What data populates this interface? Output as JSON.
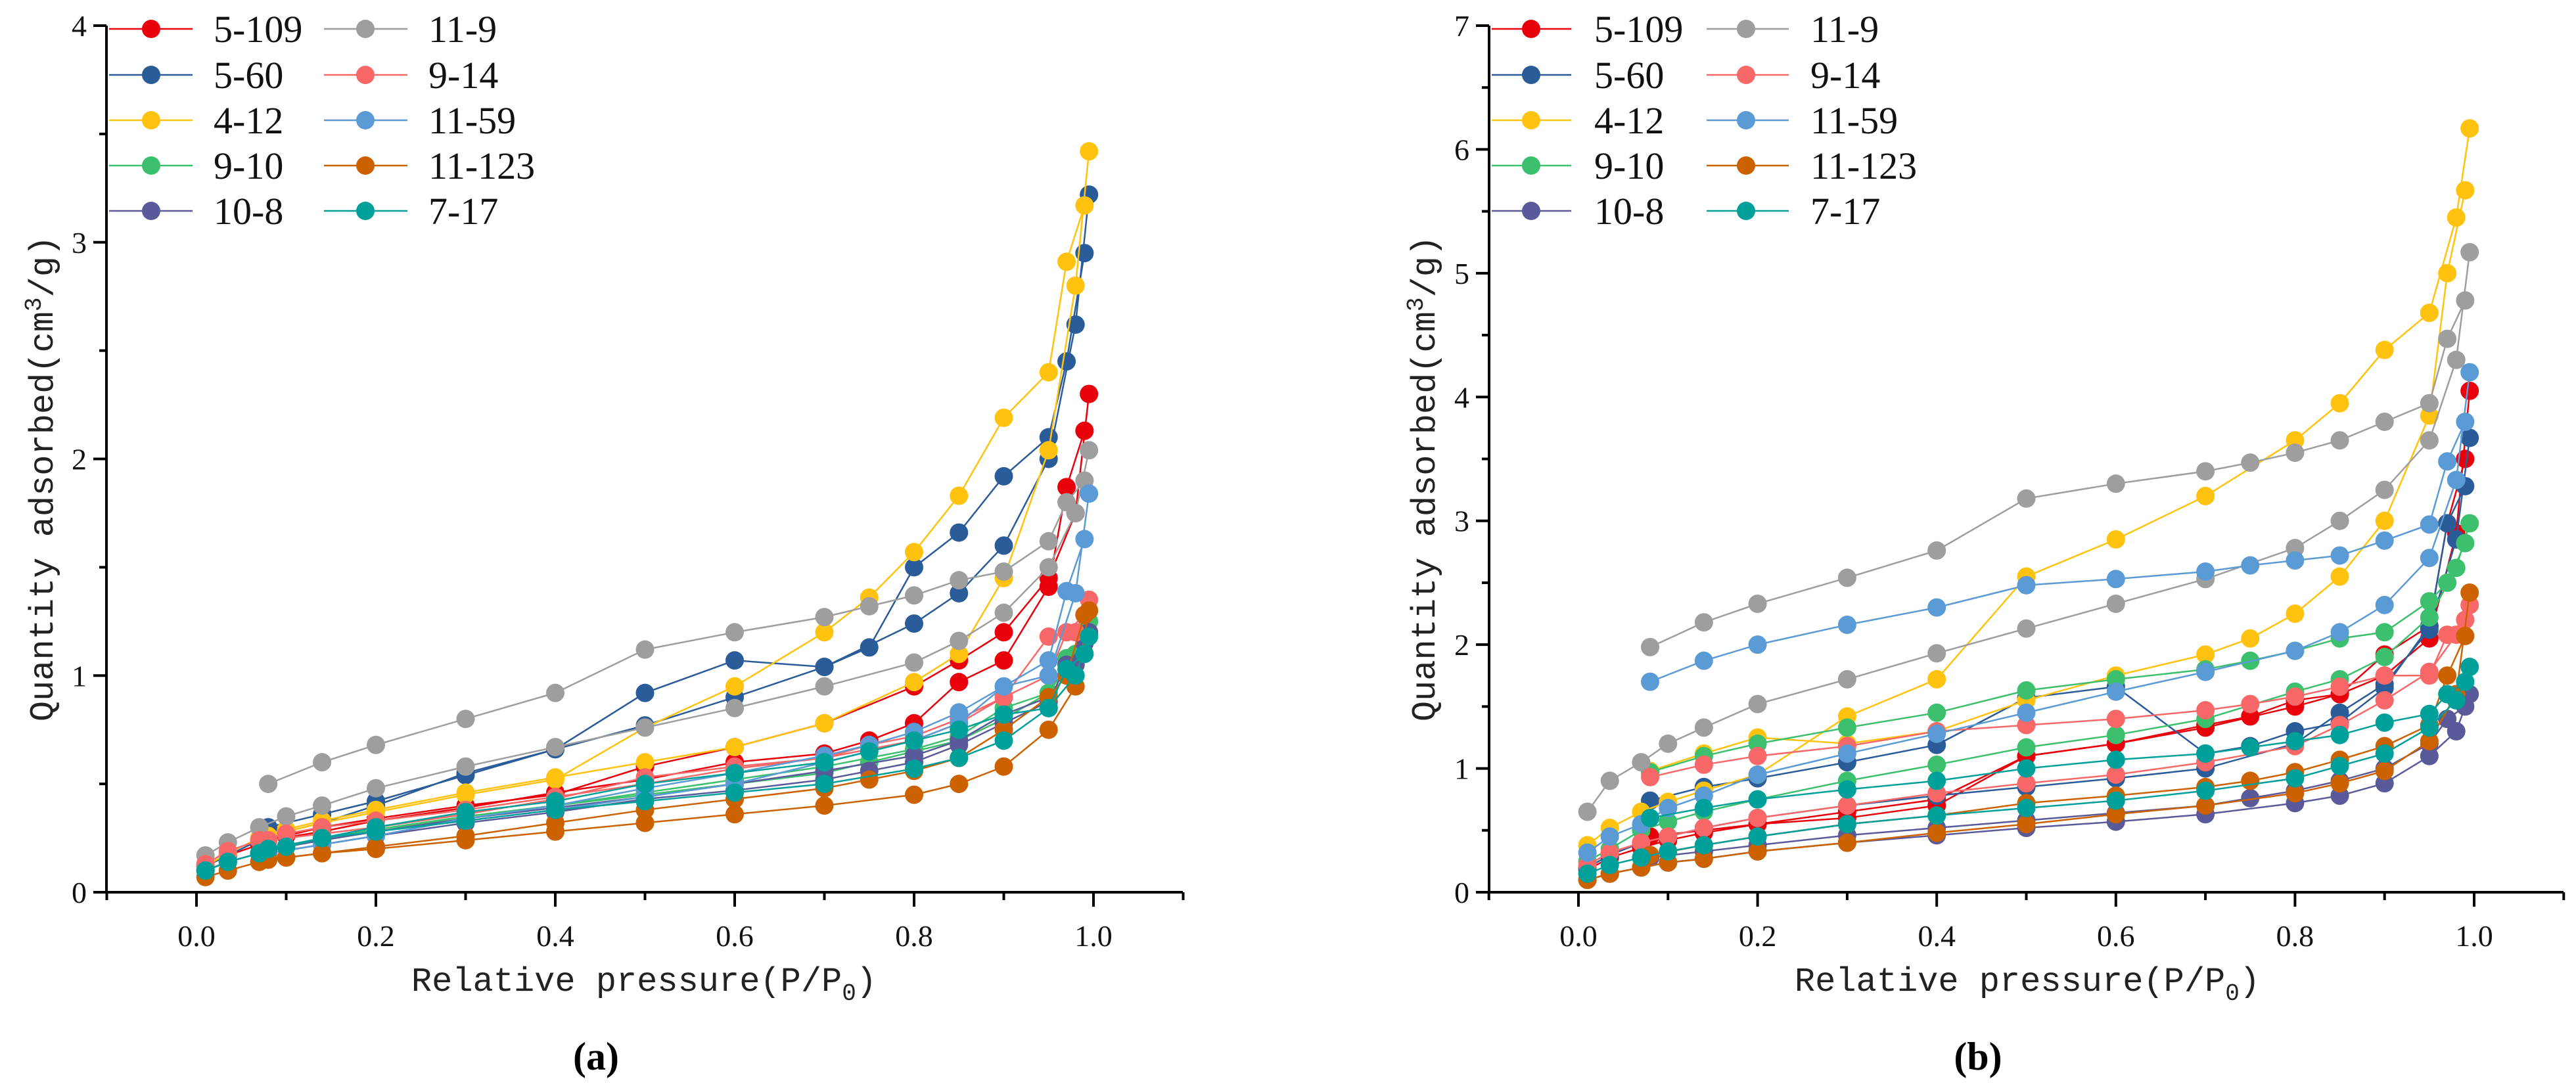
{
  "chart_data": [
    {
      "type": "scatter",
      "panel_label": "(a)",
      "title": "",
      "xlabel_main": "Relative pressure(P/P",
      "xlabel_sub": "0",
      "xlabel_end": ")",
      "ylabel_main": "Quantity adsorbed(cm",
      "ylabel_sup": "3",
      "ylabel_end": "/g)",
      "xlim": [
        -0.1,
        1.1
      ],
      "ylim": [
        0,
        4
      ],
      "xticks": [
        "0.0",
        "0.2",
        "0.4",
        "0.6",
        "0.8",
        "1.0"
      ],
      "yticks": [
        "0",
        "1",
        "2",
        "3",
        "4"
      ],
      "legend_placement": "top-left",
      "grid": false,
      "x_adsorption": [
        0.01,
        0.035,
        0.07,
        0.1,
        0.14,
        0.2,
        0.3,
        0.4,
        0.5,
        0.6,
        0.7,
        0.8,
        0.85,
        0.9,
        0.95,
        0.98,
        0.995
      ],
      "x_desorption": [
        0.99,
        0.97,
        0.95,
        0.9,
        0.85,
        0.8,
        0.75,
        0.7,
        0.6,
        0.5,
        0.4,
        0.3,
        0.2,
        0.14,
        0.08
      ],
      "series": [
        {
          "name": "5-109",
          "color": "#e8000b",
          "adsorption": [
            0.12,
            0.17,
            0.22,
            0.26,
            0.3,
            0.34,
            0.4,
            0.45,
            0.58,
            0.67,
            0.78,
            0.95,
            1.07,
            1.2,
            1.45,
            1.75,
            2.3
          ],
          "desorption": [
            2.13,
            1.87,
            1.41,
            1.07,
            0.97,
            0.78,
            0.7,
            0.64,
            0.6,
            0.52,
            0.46,
            0.39,
            0.33,
            0.28,
            0.24
          ]
        },
        {
          "name": "5-60",
          "color": "#2b5c9a",
          "adsorption": [
            0.12,
            0.17,
            0.24,
            0.28,
            0.32,
            0.4,
            0.55,
            0.66,
            0.77,
            0.9,
            1.04,
            1.24,
            1.38,
            1.6,
            2.0,
            2.62,
            3.22
          ],
          "desorption": [
            2.95,
            2.45,
            2.1,
            1.92,
            1.66,
            1.5,
            1.13,
            1.04,
            1.07,
            0.92,
            0.66,
            0.54,
            0.42,
            0.36,
            0.3
          ]
        },
        {
          "name": "4-12",
          "color": "#ffc20e",
          "adsorption": [
            0.12,
            0.18,
            0.25,
            0.29,
            0.33,
            0.38,
            0.46,
            0.53,
            0.6,
            0.67,
            0.78,
            0.97,
            1.1,
            1.45,
            2.04,
            2.8,
            3.42
          ],
          "desorption": [
            3.17,
            2.91,
            2.4,
            2.19,
            1.83,
            1.57,
            1.36,
            1.2,
            0.95,
            0.76,
            0.52,
            0.45,
            0.37,
            0.32,
            0.26
          ]
        },
        {
          "name": "9-10",
          "color": "#3cc06e",
          "adsorption": [
            0.1,
            0.14,
            0.18,
            0.21,
            0.25,
            0.29,
            0.35,
            0.4,
            0.46,
            0.52,
            0.58,
            0.66,
            0.72,
            0.85,
            0.92,
            1.1,
            1.25
          ],
          "desorption": [
            1.2,
            1.08,
            0.92,
            0.8,
            0.7,
            0.65,
            0.6,
            0.55,
            0.5,
            0.45,
            0.4,
            0.35,
            0.28,
            0.24,
            0.2
          ]
        },
        {
          "name": "10-8",
          "color": "#5a5a9a",
          "adsorption": [
            0.1,
            0.14,
            0.18,
            0.21,
            0.24,
            0.28,
            0.34,
            0.39,
            0.44,
            0.5,
            0.56,
            0.63,
            0.7,
            0.82,
            0.9,
            1.05,
            1.2
          ],
          "desorption": [
            1.15,
            1.05,
            0.88,
            0.78,
            0.68,
            0.6,
            0.56,
            0.52,
            0.47,
            0.43,
            0.37,
            0.32,
            0.26,
            0.22,
            0.18
          ]
        },
        {
          "name": "11-9",
          "color": "#9e9e9e",
          "adsorption": [
            0.17,
            0.23,
            0.3,
            0.35,
            0.4,
            0.48,
            0.58,
            0.67,
            0.76,
            0.85,
            0.95,
            1.06,
            1.16,
            1.29,
            1.5,
            1.75,
            2.04
          ],
          "desorption": [
            1.9,
            1.8,
            1.62,
            1.48,
            1.44,
            1.37,
            1.32,
            1.27,
            1.2,
            1.12,
            0.92,
            0.8,
            0.68,
            0.6,
            0.5
          ]
        },
        {
          "name": "9-14",
          "color": "#f86868",
          "adsorption": [
            0.13,
            0.19,
            0.24,
            0.27,
            0.3,
            0.33,
            0.38,
            0.44,
            0.5,
            0.57,
            0.62,
            0.7,
            0.78,
            0.9,
            1.18,
            1.2,
            1.35
          ],
          "desorption": [
            1.28,
            1.2,
            1.0,
            0.9,
            0.8,
            0.72,
            0.68,
            0.62,
            0.58,
            0.53,
            0.43,
            0.36,
            0.3,
            0.27,
            0.24
          ]
        },
        {
          "name": "11-59",
          "color": "#5b9bd5",
          "adsorption": [
            0.1,
            0.14,
            0.18,
            0.21,
            0.25,
            0.28,
            0.33,
            0.38,
            0.44,
            0.5,
            0.6,
            0.7,
            0.78,
            0.95,
            1.0,
            1.38,
            1.84
          ],
          "desorption": [
            1.63,
            1.39,
            1.07,
            0.95,
            0.83,
            0.74,
            0.68,
            0.63,
            0.55,
            0.48,
            0.4,
            0.34,
            0.26,
            0.22,
            0.18
          ]
        },
        {
          "name": "11-123",
          "color": "#cc6100",
          "adsorption": [
            0.07,
            0.1,
            0.14,
            0.16,
            0.18,
            0.2,
            0.24,
            0.28,
            0.32,
            0.36,
            0.4,
            0.45,
            0.5,
            0.58,
            0.75,
            0.95,
            1.3
          ],
          "desorption": [
            1.28,
            1.0,
            0.9,
            0.75,
            0.62,
            0.56,
            0.52,
            0.48,
            0.43,
            0.38,
            0.32,
            0.26,
            0.21,
            0.18,
            0.15
          ]
        },
        {
          "name": "7-17",
          "color": "#00a09a",
          "adsorption": [
            0.1,
            0.14,
            0.18,
            0.21,
            0.25,
            0.28,
            0.33,
            0.38,
            0.42,
            0.46,
            0.5,
            0.57,
            0.62,
            0.7,
            0.85,
            1.0,
            1.18
          ],
          "desorption": [
            1.1,
            1.03,
            0.85,
            0.82,
            0.75,
            0.7,
            0.65,
            0.6,
            0.55,
            0.5,
            0.42,
            0.37,
            0.3,
            0.25,
            0.2
          ]
        }
      ]
    },
    {
      "type": "scatter",
      "panel_label": "(b)",
      "title": "",
      "xlabel_main": "Relative pressure(P/P",
      "xlabel_sub": "0",
      "xlabel_end": ")",
      "ylabel_main": "Quantity adsorbed(cm",
      "ylabel_sup": "3",
      "ylabel_end": "/g)",
      "xlim": [
        -0.1,
        1.1
      ],
      "ylim": [
        0,
        7
      ],
      "xticks": [
        "0.0",
        "0.2",
        "0.4",
        "0.6",
        "0.8",
        "1.0"
      ],
      "yticks": [
        "0",
        "1",
        "2",
        "3",
        "4",
        "5",
        "6",
        "7"
      ],
      "legend_placement": "top-left",
      "grid": false,
      "x_adsorption": [
        0.01,
        0.035,
        0.07,
        0.1,
        0.14,
        0.2,
        0.3,
        0.4,
        0.5,
        0.6,
        0.7,
        0.8,
        0.85,
        0.9,
        0.95,
        0.98,
        0.995
      ],
      "x_desorption": [
        0.99,
        0.97,
        0.95,
        0.9,
        0.85,
        0.8,
        0.75,
        0.7,
        0.6,
        0.5,
        0.4,
        0.3,
        0.2,
        0.14,
        0.08
      ],
      "series": [
        {
          "name": "5-109",
          "color": "#e8000b",
          "adsorption": [
            0.18,
            0.28,
            0.36,
            0.42,
            0.48,
            0.55,
            0.65,
            0.75,
            1.1,
            1.2,
            1.33,
            1.5,
            1.6,
            1.75,
            2.05,
            2.9,
            4.05
          ],
          "desorption": [
            3.5,
            2.98,
            2.15,
            1.92,
            1.6,
            1.55,
            1.42,
            1.35,
            1.2,
            1.1,
            0.7,
            0.6,
            0.55,
            0.5,
            0.45
          ]
        },
        {
          "name": "5-60",
          "color": "#2b5c9a",
          "adsorption": [
            0.2,
            0.3,
            0.4,
            0.45,
            0.52,
            0.6,
            0.7,
            0.78,
            0.85,
            0.92,
            1.0,
            1.2,
            1.45,
            1.68,
            2.12,
            2.85,
            3.67
          ],
          "desorption": [
            3.28,
            2.98,
            2.15,
            1.65,
            1.37,
            1.3,
            1.18,
            1.12,
            1.66,
            1.57,
            1.19,
            1.05,
            0.92,
            0.85,
            0.74
          ]
        },
        {
          "name": "4-12",
          "color": "#ffc20e",
          "adsorption": [
            0.38,
            0.52,
            0.65,
            0.73,
            0.82,
            0.95,
            1.42,
            1.72,
            2.55,
            2.85,
            3.2,
            3.65,
            3.95,
            4.38,
            4.68,
            5.45,
            6.17
          ],
          "desorption": [
            5.67,
            5.0,
            3.85,
            3.0,
            2.55,
            2.25,
            2.05,
            1.92,
            1.75,
            1.55,
            1.3,
            1.2,
            1.25,
            1.12,
            0.98
          ]
        },
        {
          "name": "9-10",
          "color": "#3cc06e",
          "adsorption": [
            0.25,
            0.35,
            0.5,
            0.57,
            0.65,
            0.75,
            0.9,
            1.03,
            1.17,
            1.27,
            1.4,
            1.62,
            1.72,
            1.9,
            2.22,
            2.62,
            2.98
          ],
          "desorption": [
            2.82,
            2.5,
            2.35,
            2.1,
            2.05,
            1.95,
            1.87,
            1.8,
            1.72,
            1.63,
            1.45,
            1.33,
            1.2,
            1.1,
            0.97
          ]
        },
        {
          "name": "10-8",
          "color": "#5a5a9a",
          "adsorption": [
            0.1,
            0.15,
            0.2,
            0.24,
            0.27,
            0.33,
            0.4,
            0.46,
            0.52,
            0.57,
            0.63,
            0.72,
            0.78,
            0.88,
            1.1,
            1.3,
            1.6
          ],
          "desorption": [
            1.5,
            1.4,
            1.2,
            1.0,
            0.9,
            0.82,
            0.76,
            0.7,
            0.64,
            0.58,
            0.52,
            0.46,
            0.38,
            0.33,
            0.28
          ]
        },
        {
          "name": "11-9",
          "color": "#9e9e9e",
          "adsorption": [
            0.65,
            0.9,
            1.05,
            1.2,
            1.33,
            1.52,
            1.72,
            1.93,
            2.13,
            2.33,
            2.53,
            2.78,
            3.0,
            3.25,
            3.65,
            4.3,
            5.17
          ],
          "desorption": [
            4.78,
            4.47,
            3.95,
            3.8,
            3.65,
            3.55,
            3.47,
            3.4,
            3.3,
            3.18,
            2.76,
            2.54,
            2.33,
            2.18,
            1.98
          ]
        },
        {
          "name": "9-14",
          "color": "#f86868",
          "adsorption": [
            0.22,
            0.32,
            0.4,
            0.45,
            0.52,
            0.6,
            0.7,
            0.8,
            0.88,
            0.95,
            1.05,
            1.18,
            1.35,
            1.55,
            1.78,
            2.08,
            2.32
          ],
          "desorption": [
            2.2,
            2.08,
            1.75,
            1.75,
            1.66,
            1.58,
            1.52,
            1.47,
            1.4,
            1.35,
            1.3,
            1.18,
            1.1,
            1.03,
            0.93
          ]
        },
        {
          "name": "11-59",
          "color": "#5b9bd5",
          "adsorption": [
            0.32,
            0.45,
            0.55,
            0.68,
            0.78,
            0.95,
            1.12,
            1.28,
            1.45,
            1.62,
            1.78,
            1.95,
            2.1,
            2.32,
            2.7,
            3.33,
            4.2
          ],
          "desorption": [
            3.8,
            3.48,
            2.97,
            2.84,
            2.72,
            2.68,
            2.64,
            2.59,
            2.53,
            2.48,
            2.3,
            2.16,
            2.0,
            1.87,
            1.7
          ]
        },
        {
          "name": "11-123",
          "color": "#cc6100",
          "adsorption": [
            0.1,
            0.15,
            0.2,
            0.24,
            0.27,
            0.33,
            0.4,
            0.48,
            0.55,
            0.63,
            0.7,
            0.8,
            0.88,
            0.98,
            1.22,
            1.6,
            2.42
          ],
          "desorption": [
            2.07,
            1.75,
            1.35,
            1.18,
            1.07,
            0.97,
            0.9,
            0.85,
            0.78,
            0.72,
            0.62,
            0.55,
            0.45,
            0.38,
            0.3
          ]
        },
        {
          "name": "7-17",
          "color": "#00a09a",
          "adsorption": [
            0.15,
            0.22,
            0.28,
            0.33,
            0.38,
            0.45,
            0.55,
            0.62,
            0.68,
            0.74,
            0.82,
            0.92,
            1.02,
            1.12,
            1.33,
            1.55,
            1.82
          ],
          "desorption": [
            1.7,
            1.6,
            1.44,
            1.37,
            1.27,
            1.22,
            1.17,
            1.12,
            1.07,
            1.0,
            0.9,
            0.83,
            0.75,
            0.68,
            0.6
          ]
        }
      ]
    }
  ]
}
